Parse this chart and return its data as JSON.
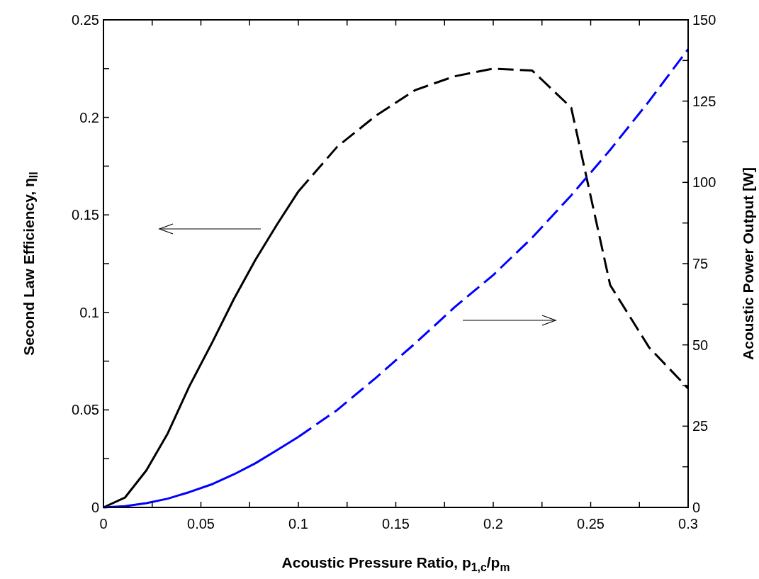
{
  "chart_data": {
    "type": "line",
    "xlabel": "Acoustic Pressure Ratio, p$_{1,c}$/p$_{m}$",
    "ylabel": "Second Law Efficiency, η$_{II}$",
    "y2label": "Acoustic Power Output  [W]",
    "xlim": [
      0,
      0.3
    ],
    "xticks": [
      0,
      {
        "value": 0.025,
        "label": null
      },
      0.05,
      {
        "value": 0.075,
        "label": null
      },
      0.1,
      {
        "value": 0.125,
        "label": null
      },
      0.15,
      {
        "value": 0.175,
        "label": null
      },
      0.2,
      {
        "value": 0.225,
        "label": null
      },
      0.25,
      {
        "value": 0.275,
        "label": null
      },
      0.3
    ],
    "ylim": [
      0,
      0.25
    ],
    "yticks": [
      0,
      {
        "value": 0.025,
        "label": null
      },
      0.05,
      {
        "value": 0.075,
        "label": null
      },
      0.1,
      {
        "value": 0.125,
        "label": null
      },
      0.15,
      {
        "value": 0.175,
        "label": null
      },
      0.2,
      {
        "value": 0.225,
        "label": null
      },
      0.25
    ],
    "y2lim": [
      0,
      150
    ],
    "y2ticks": [
      0,
      {
        "value": 12.5,
        "label": null
      },
      25,
      {
        "value": 37.5,
        "label": null
      },
      50,
      {
        "value": 62.5,
        "label": null
      },
      75,
      {
        "value": 87.5,
        "label": null
      },
      100,
      {
        "value": 112.5,
        "label": null
      },
      125,
      {
        "value": 137.5,
        "label": null
      },
      150
    ],
    "grid": false,
    "marker": "none",
    "series": [
      {
        "color": "#000000",
        "line_style": "solid",
        "x": [
          0,
          0.011,
          0.022,
          0.033,
          0.044,
          0.056,
          0.067,
          0.078,
          0.089,
          0.1
        ],
        "values": [
          0,
          0.005,
          0.019,
          0.038,
          0.062,
          0.085,
          0.107,
          0.127,
          0.145,
          0.162
        ]
      },
      {
        "color": "#000000",
        "line_style": "dashed",
        "x": [
          0.1,
          0.12,
          0.14,
          0.16,
          0.18,
          0.2,
          0.22,
          0.24,
          0.26,
          0.28,
          0.3
        ],
        "values": [
          0.162,
          0.185,
          0.201,
          0.214,
          0.221,
          0.225,
          0.224,
          0.205,
          0.114,
          0.082,
          0.061
        ]
      },
      {
        "color": "#0000ff",
        "line_style": "solid",
        "axis": "y2",
        "x": [
          0,
          0.011,
          0.022,
          0.033,
          0.044,
          0.056,
          0.067,
          0.078,
          0.089,
          0.1
        ],
        "values": [
          0,
          0.4,
          1.3,
          2.7,
          4.7,
          7.2,
          10.2,
          13.6,
          17.6,
          21.7
        ]
      },
      {
        "color": "#0000ff",
        "line_style": "dashed",
        "axis": "y2",
        "x": [
          0.1,
          0.12,
          0.14,
          0.16,
          0.18,
          0.2,
          0.22,
          0.24,
          0.26,
          0.28,
          0.3
        ],
        "values": [
          21.7,
          30,
          40,
          50.5,
          61.5,
          71.5,
          83,
          96,
          110,
          125,
          141
        ]
      }
    ]
  }
}
